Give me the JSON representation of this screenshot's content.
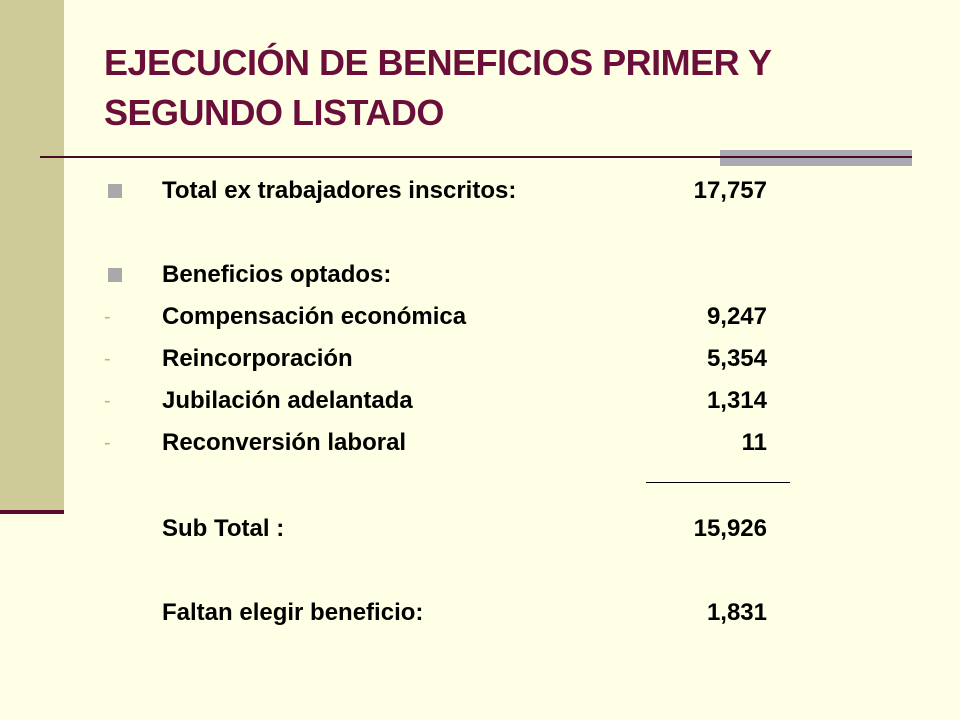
{
  "slide": {
    "title_line1": "EJECUCIÓN DE BENEFICIOS PRIMER Y",
    "title_line2": "SEGUNDO LISTADO"
  },
  "summary": {
    "total_label": "Total ex trabajadores inscritos:",
    "total_value": "17,757",
    "benefits_header": "Beneficios optados:",
    "benefits": [
      {
        "dash": "-",
        "label": "Compensación económica",
        "value": "9,247"
      },
      {
        "dash": "-",
        "label": "Reincorporación",
        "value": "5,354"
      },
      {
        "dash": "-",
        "label": "Jubilación adelantada",
        "value": "1,314"
      },
      {
        "dash": "-",
        "label": "Reconversión laboral",
        "value": "11"
      }
    ],
    "subtotal_label": "Sub Total :",
    "subtotal_value": "15,926",
    "pending_label": "Faltan elegir beneficio:",
    "pending_value": "1,831"
  }
}
